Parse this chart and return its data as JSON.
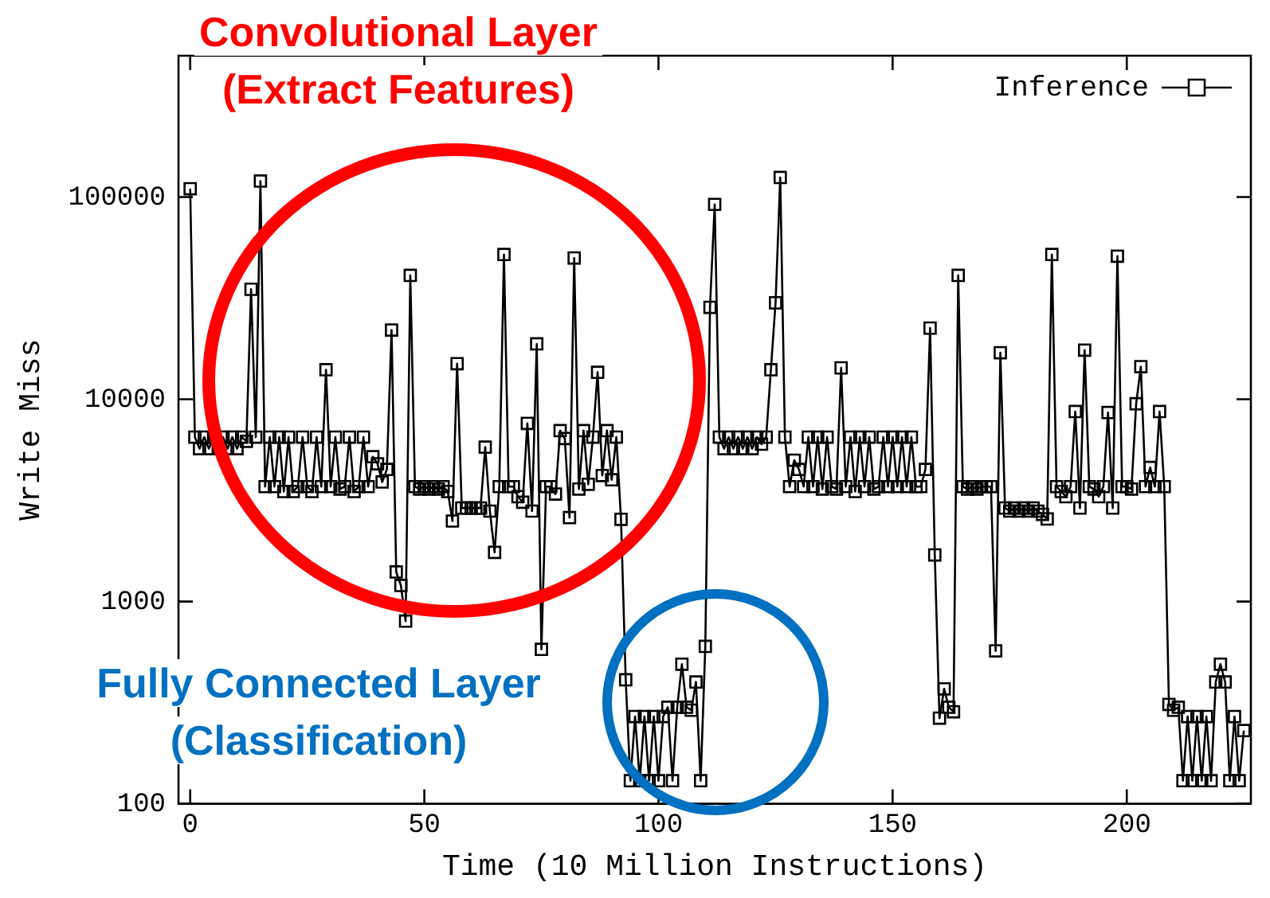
{
  "chart_data": {
    "type": "line",
    "xlabel": "Time (10 Million Instructions)",
    "ylabel": "Write Miss",
    "annotations": [
      "Convolutional Layer\n(Extract Features)",
      "Fully Connected Layer\n(Classification)"
    ],
    "log": "y",
    "legend": "top right",
    "marker": "square",
    "line_style": "solid",
    "xlim": [
      -2.5,
      226.5
    ],
    "xticks": [
      0,
      50,
      100,
      150,
      200
    ],
    "ylim": [
      100,
      500000
    ],
    "yticks": [
      100,
      1000,
      10000,
      100000
    ],
    "x": [
      0,
      1,
      2,
      3,
      4,
      5,
      6,
      7,
      8,
      9,
      10,
      11,
      12,
      13,
      14,
      15,
      16,
      17,
      18,
      19,
      20,
      21,
      22,
      23,
      24,
      25,
      26,
      27,
      28,
      29,
      30,
      31,
      32,
      33,
      34,
      35,
      36,
      37,
      38,
      39,
      40,
      41,
      42,
      43,
      44,
      45,
      46,
      47,
      48,
      49,
      50,
      51,
      52,
      53,
      54,
      55,
      56,
      57,
      58,
      59,
      60,
      61,
      62,
      63,
      64,
      65,
      66,
      67,
      68,
      69,
      70,
      71,
      72,
      73,
      74,
      75,
      76,
      77,
      78,
      79,
      80,
      81,
      82,
      83,
      84,
      85,
      86,
      87,
      88,
      89,
      90,
      91,
      92,
      93,
      94,
      95,
      96,
      97,
      98,
      99,
      100,
      101,
      102,
      103,
      104,
      105,
      106,
      107,
      108,
      109,
      110,
      111,
      112,
      113,
      114,
      115,
      116,
      117,
      118,
      119,
      120,
      121,
      122,
      123,
      124,
      125,
      126,
      127,
      128,
      129,
      130,
      131,
      132,
      133,
      134,
      135,
      136,
      137,
      138,
      139,
      140,
      141,
      142,
      143,
      144,
      145,
      146,
      147,
      148,
      149,
      150,
      151,
      152,
      153,
      154,
      155,
      156,
      157,
      158,
      159,
      160,
      161,
      162,
      163,
      164,
      165,
      166,
      167,
      168,
      169,
      170,
      171,
      172,
      173,
      174,
      175,
      176,
      177,
      178,
      179,
      180,
      181,
      182,
      183,
      184,
      185,
      186,
      187,
      188,
      189,
      190,
      191,
      192,
      193,
      194,
      195,
      196,
      197,
      198,
      199,
      200,
      201,
      202,
      203,
      204,
      205,
      206,
      207,
      208,
      209,
      210,
      211,
      212,
      213,
      214,
      215,
      216,
      217,
      218,
      219,
      220,
      221,
      222,
      223,
      224,
      225
    ],
    "series": [
      {
        "name": "Inference",
        "color": "#000000",
        "values": [
          110000,
          6500,
          5700,
          6500,
          5700,
          6500,
          5700,
          6500,
          5700,
          6500,
          5700,
          6500,
          6200,
          35000,
          6500,
          120000,
          3700,
          6500,
          3700,
          6500,
          3500,
          6500,
          3500,
          3700,
          6500,
          3700,
          3500,
          6500,
          3700,
          14000,
          3700,
          6500,
          3600,
          3700,
          6500,
          3500,
          3700,
          6500,
          3700,
          5200,
          4800,
          3900,
          4500,
          22000,
          1400,
          1200,
          800,
          41000,
          3700,
          3600,
          3700,
          3600,
          3700,
          3600,
          3700,
          3500,
          2500,
          15000,
          2900,
          2900,
          2900,
          2900,
          2900,
          5800,
          2800,
          1750,
          3700,
          52000,
          3700,
          3700,
          3300,
          3100,
          7600,
          2800,
          18800,
          580,
          3700,
          3700,
          3400,
          7000,
          6400,
          2600,
          50000,
          3600,
          7000,
          3800,
          6500,
          13600,
          4200,
          7000,
          4000,
          6500,
          2550,
          410,
          130,
          270,
          130,
          270,
          130,
          270,
          130,
          270,
          300,
          130,
          300,
          490,
          300,
          290,
          400,
          130,
          600,
          28500,
          92000,
          6500,
          5700,
          6500,
          5700,
          6500,
          5700,
          6500,
          5700,
          6500,
          6000,
          6500,
          14000,
          30000,
          125000,
          6500,
          3700,
          5000,
          4500,
          3700,
          6500,
          3700,
          6500,
          3600,
          6500,
          3700,
          3600,
          14300,
          3700,
          6500,
          3500,
          6500,
          3700,
          6500,
          3600,
          3700,
          6500,
          3700,
          6500,
          3700,
          6500,
          3700,
          6500,
          3700,
          3700,
          4500,
          22500,
          1700,
          265,
          370,
          300,
          285,
          41000,
          3700,
          3600,
          3700,
          3600,
          3700,
          3700,
          3700,
          570,
          17000,
          2900,
          2800,
          2900,
          2800,
          2900,
          2800,
          2900,
          2800,
          2700,
          2560,
          52000,
          3700,
          3500,
          3300,
          3700,
          8700,
          2900,
          17500,
          3700,
          3600,
          3300,
          3700,
          8600,
          2900,
          51000,
          3700,
          3700,
          3600,
          9500,
          14500,
          3700,
          4600,
          3700,
          8700,
          3700,
          310,
          290,
          300,
          130,
          270,
          130,
          270,
          130,
          270,
          130,
          400,
          490,
          400,
          130,
          270,
          130,
          230
        ]
      }
    ]
  }
}
